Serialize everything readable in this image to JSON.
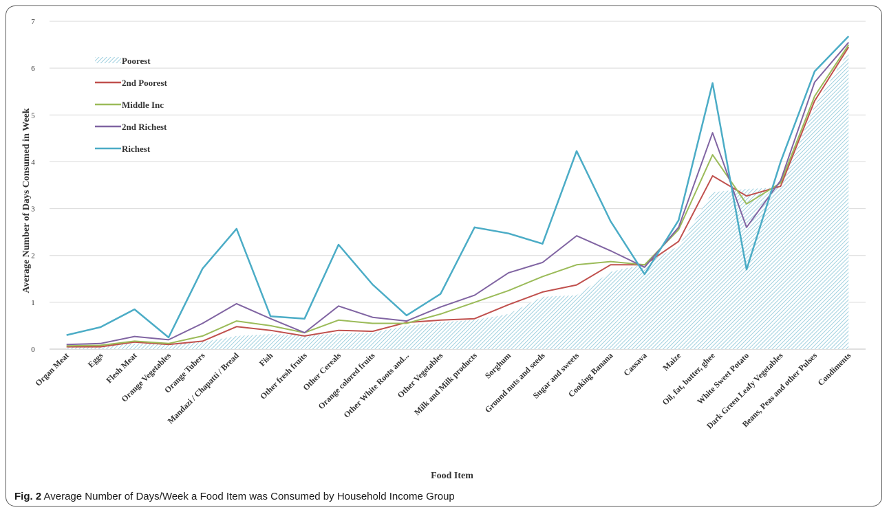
{
  "caption": {
    "label": "Fig. 2",
    "text": "Average Number of Days/Week a Food Item was Consumed by Household Income Group"
  },
  "chart_data": {
    "type": "line",
    "xlabel": "Food Item",
    "ylabel": "Average Number of Days Consumed in Week",
    "ylim": [
      0,
      7
    ],
    "yticks": [
      0,
      1,
      2,
      3,
      4,
      5,
      6,
      7
    ],
    "grid": "horizontal",
    "legend_position": "top-left",
    "categories": [
      "Organ Meat",
      "Eggs",
      "Flesh Meat",
      "Orange Vegetables",
      "Orange Tubers",
      "Mandazi / Chapatti / Bread",
      "Fish",
      "Other fresh fruits",
      "Other Cereals",
      "Orange colored fruits",
      "Other White Roots and...",
      "Other Vegetables",
      "Milk and Milk products",
      "Sorghum",
      "Ground nuts and seeds",
      "Sugar and sweets",
      "Cooking Banana",
      "Cassava",
      "Maize",
      "Oil, fat, butter, ghee",
      "White Sweet Potato",
      "Dark Green Leafy Vegetables",
      "Beans, Peas and other Pulses",
      "Condiments"
    ],
    "series": [
      {
        "name": "Poorest",
        "style": "hatched-area",
        "color": "#9fd0df",
        "values": [
          0.05,
          0.07,
          0.12,
          0.1,
          0.15,
          0.28,
          0.32,
          0.3,
          0.33,
          0.35,
          0.5,
          0.58,
          0.62,
          0.75,
          1.12,
          1.15,
          1.65,
          1.82,
          2.2,
          3.35,
          3.42,
          3.45,
          5.2,
          6.35
        ]
      },
      {
        "name": "2nd Poorest",
        "style": "line",
        "color": "#c0504d",
        "values": [
          0.05,
          0.05,
          0.15,
          0.1,
          0.17,
          0.48,
          0.4,
          0.28,
          0.4,
          0.38,
          0.57,
          0.62,
          0.65,
          0.95,
          1.22,
          1.37,
          1.8,
          1.8,
          2.3,
          3.7,
          3.27,
          3.48,
          5.3,
          6.45
        ]
      },
      {
        "name": "Middle Inc",
        "style": "line",
        "color": "#9bbb59",
        "values": [
          0.07,
          0.08,
          0.17,
          0.12,
          0.28,
          0.6,
          0.5,
          0.35,
          0.62,
          0.55,
          0.55,
          0.75,
          1.0,
          1.25,
          1.55,
          1.8,
          1.87,
          1.8,
          2.55,
          4.15,
          3.1,
          3.55,
          5.4,
          6.5
        ]
      },
      {
        "name": "2nd Richest",
        "style": "line",
        "color": "#8064a2",
        "values": [
          0.1,
          0.12,
          0.27,
          0.2,
          0.55,
          0.97,
          0.65,
          0.35,
          0.92,
          0.68,
          0.6,
          0.9,
          1.15,
          1.63,
          1.85,
          2.42,
          2.1,
          1.75,
          2.6,
          4.62,
          2.6,
          3.6,
          5.7,
          6.55
        ]
      },
      {
        "name": "Richest",
        "style": "line",
        "color": "#4bacc6",
        "values": [
          0.3,
          0.47,
          0.85,
          0.25,
          1.72,
          2.57,
          0.7,
          0.65,
          2.23,
          1.38,
          0.72,
          1.18,
          2.6,
          2.47,
          2.25,
          4.23,
          2.73,
          1.6,
          2.75,
          5.68,
          1.7,
          4.0,
          5.93,
          6.68
        ]
      }
    ]
  }
}
